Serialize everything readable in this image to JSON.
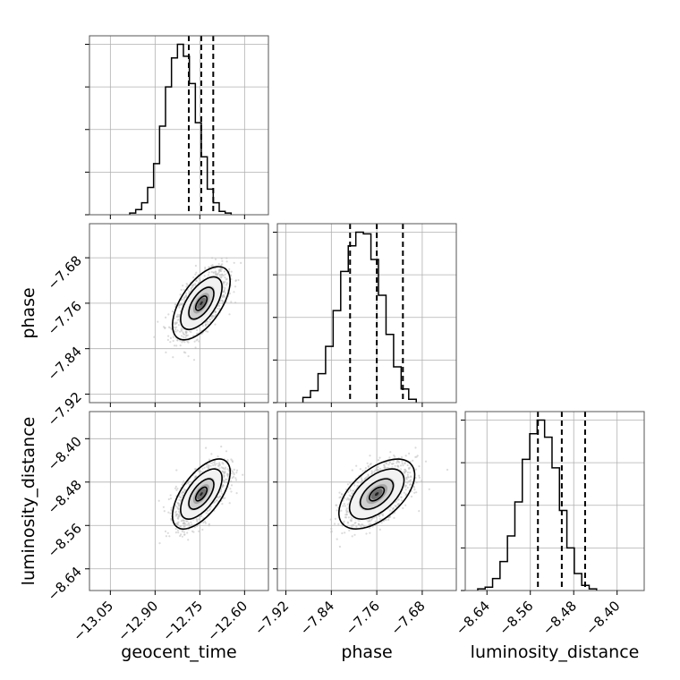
{
  "chart_data": {
    "type": "corner",
    "parameters": [
      "geocent_time",
      "phase",
      "luminosity_distance"
    ],
    "axes": {
      "geocent_time": {
        "range": [
          -13.12,
          -12.52
        ],
        "ticks": [
          -13.05,
          -12.9,
          -12.75,
          -12.6
        ],
        "tick_labels": [
          "−13.05",
          "−12.90",
          "−12.75",
          "−12.60"
        ]
      },
      "phase": {
        "range": [
          -7.935,
          -7.62
        ],
        "ticks": [
          -7.92,
          -7.84,
          -7.76,
          -7.68
        ],
        "tick_labels": [
          "−7.92",
          "−7.84",
          "−7.76",
          "−7.68"
        ]
      },
      "luminosity_distance": {
        "range": [
          -8.68,
          -8.35
        ],
        "ticks": [
          -8.64,
          -8.56,
          -8.48,
          -8.4
        ],
        "tick_labels": [
          "−8.64",
          "−8.56",
          "−8.48",
          "−8.40"
        ]
      }
    },
    "histograms": [
      {
        "parameter": "geocent_time",
        "bin_start": -12.985,
        "bin_width": 0.02,
        "counts": [
          0.01,
          0.03,
          0.07,
          0.16,
          0.3,
          0.52,
          0.75,
          0.92,
          1.0,
          0.93,
          0.77,
          0.54,
          0.34,
          0.15,
          0.07,
          0.02,
          0.01
        ],
        "quantiles": [
          -12.787,
          -12.745,
          -12.705
        ]
      },
      {
        "parameter": "phase",
        "bin_start": -7.89,
        "bin_width": 0.0133,
        "counts": [
          0.03,
          0.07,
          0.17,
          0.33,
          0.54,
          0.77,
          0.92,
          1.0,
          0.99,
          0.84,
          0.63,
          0.4,
          0.21,
          0.08,
          0.02
        ],
        "quantiles": [
          -7.807,
          -7.76,
          -7.714
        ]
      },
      {
        "parameter": "luminosity_distance",
        "bin_start": -8.657,
        "bin_width": 0.0137,
        "counts": [
          0.01,
          0.02,
          0.07,
          0.17,
          0.32,
          0.52,
          0.77,
          0.92,
          1.0,
          0.9,
          0.72,
          0.47,
          0.25,
          0.1,
          0.03,
          0.01
        ],
        "quantiles": [
          -8.546,
          -8.502,
          -8.459
        ]
      }
    ],
    "pairs": [
      {
        "x": "geocent_time",
        "y": "phase",
        "mean": [
          -12.745,
          -7.76
        ],
        "std": [
          0.042,
          0.028
        ],
        "correlation": 0.6
      },
      {
        "x": "geocent_time",
        "y": "luminosity_distance",
        "mean": [
          -12.745,
          -8.502
        ],
        "std": [
          0.042,
          0.028
        ],
        "correlation": 0.62
      },
      {
        "x": "phase",
        "y": "luminosity_distance",
        "mean": [
          -7.76,
          -8.502
        ],
        "std": [
          0.029,
          0.028
        ],
        "correlation": 0.55
      }
    ],
    "grid": true
  }
}
